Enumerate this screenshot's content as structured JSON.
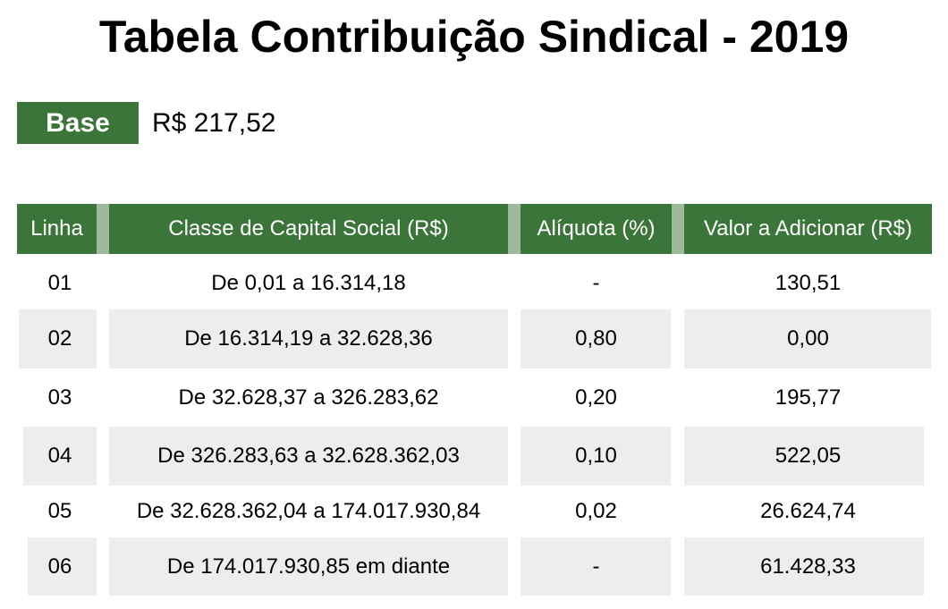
{
  "title": "Tabela Contribuição Sindical - 2019",
  "base": {
    "label": "Base",
    "value": "R$ 217,52"
  },
  "colors": {
    "header_green": "#3b7539",
    "header_separator": "#9fb99c",
    "row_shade": "#ededed"
  },
  "table": {
    "headers": [
      "Linha",
      "Classe de Capital Social (R$)",
      "Alíquota (%)",
      "Valor a Adicionar (R$)"
    ],
    "rows": [
      {
        "linha": "01",
        "classe": "De 0,01 a 16.314,18",
        "aliquota": "-",
        "valor": "130,51",
        "shaded": false
      },
      {
        "linha": "02",
        "classe": "De 16.314,19 a 32.628,36",
        "aliquota": "0,80",
        "valor": "0,00",
        "shaded": true
      },
      {
        "linha": "03",
        "classe": "De 32.628,37 a 326.283,62",
        "aliquota": "0,20",
        "valor": "195,77",
        "shaded": false
      },
      {
        "linha": "04",
        "classe": "De 326.283,63 a 32.628.362,03",
        "aliquota": "0,10",
        "valor": "522,05",
        "shaded": true
      },
      {
        "linha": "05",
        "classe": "De 32.628.362,04 a 174.017.930,84",
        "aliquota": "0,02",
        "valor": "26.624,74",
        "shaded": false
      },
      {
        "linha": "06",
        "classe": "De 174.017.930,85 em diante",
        "aliquota": "-",
        "valor": "61.428,33",
        "shaded": true
      }
    ]
  }
}
